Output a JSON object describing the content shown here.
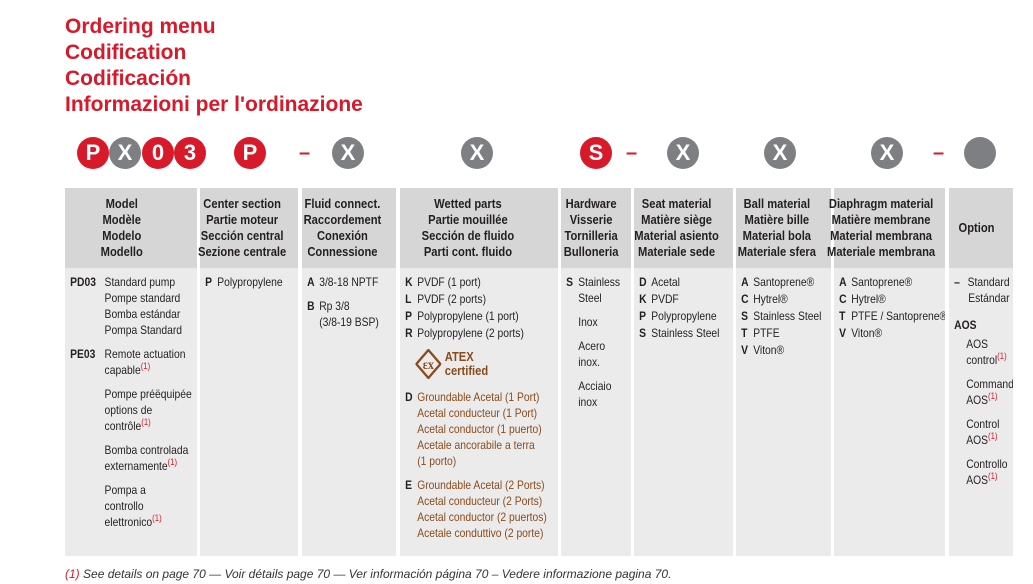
{
  "title_lines": [
    "Ordering menu",
    "Codification",
    "Codificación",
    "Informazioni per l'ordinazione"
  ],
  "codes": [
    {
      "label": "P",
      "color": "#d7192a"
    },
    {
      "label": "X",
      "color": "#7d7f82"
    },
    {
      "label": "0",
      "color": "#d7192a"
    },
    {
      "label": "3",
      "color": "#d7192a"
    },
    {
      "label": "P",
      "color": "#d7192a"
    },
    {
      "dash": "–"
    },
    {
      "label": "X",
      "color": "#7d7f82"
    },
    {
      "label": "X",
      "color": "#7d7f82"
    },
    {
      "label": "S",
      "color": "#d7192a"
    },
    {
      "dash": "–"
    },
    {
      "label": "X",
      "color": "#7d7f82"
    },
    {
      "label": "X",
      "color": "#7d7f82"
    },
    {
      "label": "X",
      "color": "#7d7f82"
    },
    {
      "dash": "–"
    },
    {
      "color": "#7d7f82"
    }
  ],
  "columns": [
    {
      "header": [
        "Model",
        "Modèle",
        "Modelo",
        "Modello"
      ],
      "items": [
        {
          "code": "PD03",
          "lines": [
            "Standard pump",
            "Pompe standard",
            "Bomba estándar",
            "Pompa Standard"
          ]
        },
        {
          "code": "PE03",
          "lines": [
            "Remote actuation",
            "capable"
          ],
          "note": "(1)"
        },
        {
          "lines": [
            "Pompe préëquipée",
            "options de",
            "contrôle"
          ],
          "note": "(1)"
        },
        {
          "lines": [
            "Bomba controlada",
            "externamente"
          ],
          "note": "(1)"
        },
        {
          "lines": [
            "Pompa a",
            "controllo",
            "elettronico"
          ],
          "note": "(1)"
        }
      ]
    },
    {
      "header": [
        "Center section",
        "Partie moteur",
        "Sección central",
        "Sezione centrale"
      ],
      "items": [
        {
          "code": "P",
          "lines": [
            "Polypropylene"
          ]
        }
      ]
    },
    {
      "header": [
        "Fluid connect.",
        "Raccordement",
        "Conexión",
        "Connessione"
      ],
      "items": [
        {
          "code": "A",
          "lines": [
            "3/8-18 NPTF"
          ]
        },
        {
          "code": "B",
          "lines": [
            "Rp 3/8",
            "(3/8-19 BSP)"
          ]
        }
      ]
    },
    {
      "header": [
        "Wetted parts",
        "Partie mouillée",
        "Sección de fluido",
        "Parti cont. fluido"
      ],
      "items": [
        {
          "code": "K",
          "lines": [
            "PVDF (1 port)"
          ],
          "tight": true
        },
        {
          "code": "L",
          "lines": [
            "PVDF (2 ports)"
          ],
          "tight": true
        },
        {
          "code": "P",
          "lines": [
            "Polypropylene (1 port)"
          ],
          "tight": true
        },
        {
          "code": "R",
          "lines": [
            "Polypropylene (2 ports)"
          ]
        },
        {
          "badge": [
            "ATEX",
            "certified"
          ]
        },
        {
          "code": "D",
          "color": "#8a4b1c",
          "lines": [
            "Groundable Acetal (1 Port)",
            "Acetal conducteur (1 Port)",
            "Acetal conductor (1 puerto)",
            "Acetale ancorabile a terra",
            "(1 porto)"
          ]
        },
        {
          "code": "E",
          "color": "#8a4b1c",
          "lines": [
            "Groundable Acetal (2 Ports)",
            "Acetal conducteur (2 Ports)",
            "Acetal conductor (2 puertos)",
            "Acetale conduttivo (2 porte)"
          ]
        }
      ]
    },
    {
      "header": [
        "Hardware",
        "Visserie",
        "Tornilleria",
        "Bulloneria"
      ],
      "items": [
        {
          "code": "S",
          "lines": [
            "Stainless",
            "Steel"
          ]
        },
        {
          "lines": [
            "Inox"
          ]
        },
        {
          "lines": [
            "Acero",
            "inox."
          ]
        },
        {
          "lines": [
            "Acciaio",
            "inox"
          ]
        }
      ]
    },
    {
      "header": [
        "Seat material",
        "Matière siège",
        "Material asiento",
        "Materiale sede"
      ],
      "items": [
        {
          "code": "D",
          "lines": [
            "Acetal"
          ],
          "tight": true
        },
        {
          "code": "K",
          "lines": [
            "PVDF"
          ],
          "tight": true
        },
        {
          "code": "P",
          "lines": [
            "Polypropylene"
          ],
          "tight": true
        },
        {
          "code": "S",
          "lines": [
            "Stainless Steel"
          ]
        }
      ]
    },
    {
      "header": [
        "Ball material",
        "Matière bille",
        "Material bola",
        "Materiale sfera"
      ],
      "items": [
        {
          "code": "A",
          "lines": [
            "Santoprene®"
          ],
          "tight": true
        },
        {
          "code": "C",
          "lines": [
            "Hytrel®"
          ],
          "tight": true
        },
        {
          "code": "S",
          "lines": [
            "Stainless Steel"
          ],
          "tight": true
        },
        {
          "code": "T",
          "lines": [
            "PTFE"
          ],
          "tight": true
        },
        {
          "code": "V",
          "lines": [
            "Viton®"
          ]
        }
      ]
    },
    {
      "header": [
        "Diaphragm material",
        "Matière membrane",
        "Material membrana",
        "Materiale membrana"
      ],
      "items": [
        {
          "code": "A",
          "lines": [
            "Santoprene®"
          ],
          "tight": true
        },
        {
          "code": "C",
          "lines": [
            "Hytrel®"
          ],
          "tight": true
        },
        {
          "code": "T",
          "lines": [
            "PTFE / Santoprene®"
          ],
          "tight": true
        },
        {
          "code": "V",
          "lines": [
            "Viton®"
          ]
        }
      ]
    },
    {
      "header": [
        "Option"
      ],
      "items": [
        {
          "code": "–",
          "lines": [
            "Standard",
            "Estándar"
          ],
          "right": true
        },
        {
          "heading": "AOS"
        },
        {
          "lines": [
            "AOS",
            "control"
          ],
          "note": "(1)"
        },
        {
          "lines": [
            "Commande",
            "AOS"
          ],
          "note": "(1)"
        },
        {
          "lines": [
            "Control",
            "AOS"
          ],
          "note": "(1)"
        },
        {
          "lines": [
            "Controllo",
            "AOS"
          ],
          "note": "(1)"
        }
      ]
    }
  ],
  "footnote": {
    "note": "(1)",
    "text": "See details on page 70 — Voir détails page 70 — Ver información página 70 – Vedere informazione pagina 70."
  }
}
